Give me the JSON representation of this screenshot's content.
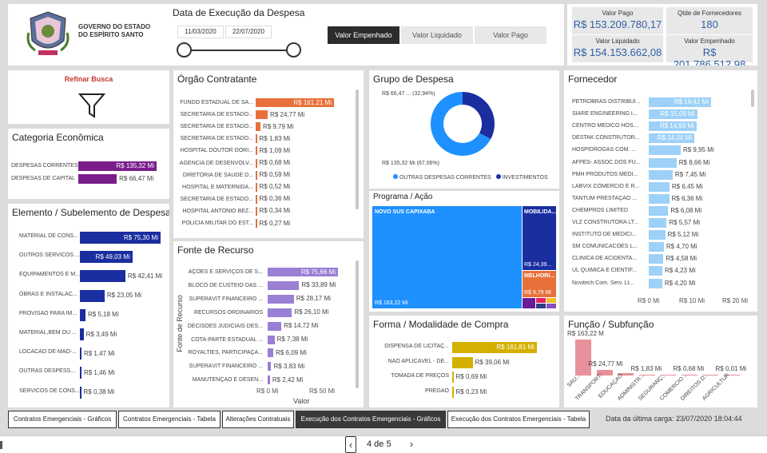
{
  "header": {
    "logo_text": "GOVERNO DO ESTADO\nDO ESPÍRITO SANTO",
    "date_title": "Data de Execução da Despesa",
    "date_start": "11/03/2020",
    "date_end": "22/07/2020",
    "toggles": [
      "Valor Empenhado",
      "Valor Liquidado",
      "Valor Pago"
    ],
    "active_toggle": "Valor Empenhado"
  },
  "kpis": {
    "valor_pago_label": "Valor Pago",
    "valor_pago": "R$ 153.209.780,17",
    "fornecedores_label": "Qtde de Fornecedores",
    "fornecedores": "180",
    "valor_liquidado_label": "Valor Liquidado",
    "valor_liquidado": "R$ 154.153.662,08",
    "valor_empenhado_label": "Valor Empenhado",
    "valor_empenhado": "R$ 201.786.512,98"
  },
  "refinar": {
    "title": "Refinar Busca"
  },
  "categoria": {
    "title": "Categoria Econômica",
    "rows": [
      {
        "label": "DESPESAS CORRENTES",
        "value": 135.32,
        "text": "R$ 135,32 Mi"
      },
      {
        "label": "DESPESAS DE CAPITAL",
        "value": 66.47,
        "text": "R$ 66,47 Mi"
      }
    ],
    "color": "#7a1e8c"
  },
  "elemento": {
    "title": "Elemento / Subelemento de Despesa",
    "rows": [
      {
        "label": "MATERIAL DE CONS...",
        "value": 75.3,
        "text": "R$ 75,30 Mi"
      },
      {
        "label": "OUTROS SERVICOS ...",
        "value": 49.03,
        "text": "R$ 49,03 Mi"
      },
      {
        "label": "EQUIPAMENTOS E M...",
        "value": 42.41,
        "text": "R$ 42,41 Mi"
      },
      {
        "label": "OBRAS E INSTALAC...",
        "value": 23.05,
        "text": "R$ 23,05 Mi"
      },
      {
        "label": "PROVISAO PARA IM...",
        "value": 5.18,
        "text": "R$ 5,18 Mi"
      },
      {
        "label": "MATERIAL,BEM OU ...",
        "value": 3.49,
        "text": "R$ 3,49 Mi"
      },
      {
        "label": "LOCACAO DE MAO-...",
        "value": 1.47,
        "text": "R$ 1,47 Mi"
      },
      {
        "label": "OUTRAS DESPESS...",
        "value": 1.46,
        "text": "R$ 1,46 Mi"
      },
      {
        "label": "SERVICOS DE CONS...",
        "value": 0.38,
        "text": "R$ 0,38 Mi"
      }
    ],
    "color": "#1a2ea0"
  },
  "orgao": {
    "title": "Órgão Contratante",
    "rows": [
      {
        "label": "FUNDO ESTADUAL DE SA...",
        "value": 161.21,
        "text": "R$ 161,21 Mi"
      },
      {
        "label": "SECRETARIA DE ESTADO...",
        "value": 24.77,
        "text": "R$ 24,77 Mi"
      },
      {
        "label": "SECRETARIA DE ESTADO...",
        "value": 9.79,
        "text": "R$ 9,79 Mi"
      },
      {
        "label": "SECRETARIA DE ESTADO...",
        "value": 1.83,
        "text": "R$ 1,83 Mi"
      },
      {
        "label": "HOSPITAL DOUTOR DORI...",
        "value": 1.09,
        "text": "R$ 1,09 Mi"
      },
      {
        "label": "AGÊNCIA DE DESENVOLV...",
        "value": 0.68,
        "text": "R$ 0,68 Mi"
      },
      {
        "label": "DIRETORIA DE SAÚDE D...",
        "value": 0.59,
        "text": "R$ 0,59 Mi"
      },
      {
        "label": "HOSPITAL E MATERNIDA...",
        "value": 0.52,
        "text": "R$ 0,52 Mi"
      },
      {
        "label": "SECRETARIA DE ESTADO...",
        "value": 0.36,
        "text": "R$ 0,36 Mi"
      },
      {
        "label": "HOSPITAL ANTONIO BEZ...",
        "value": 0.34,
        "text": "R$ 0,34 Mi"
      },
      {
        "label": "POLÍCIA MILITAR DO EST...",
        "value": 0.27,
        "text": "R$ 0,27 Mi"
      }
    ],
    "color": "#e8713b"
  },
  "fonte": {
    "title": "Fonte de Recurso",
    "yaxis": "Fonte de Recurso",
    "xaxis": "Valor",
    "ticks": [
      "R$ 0 Mi",
      "R$ 50 Mi"
    ],
    "rows": [
      {
        "label": "AÇÕES E SERVIÇOS DE S...",
        "value": 75.66,
        "text": "R$ 75,66 Mi"
      },
      {
        "label": "BLOCO DE CUSTEIO DAS ...",
        "value": 33.89,
        "text": "R$ 33,89 Mi"
      },
      {
        "label": "SUPERÁVIT FINANCEIRO ...",
        "value": 28.17,
        "text": "R$ 28,17 Mi"
      },
      {
        "label": "RECURSOS ORDINÁRIOS",
        "value": 26.1,
        "text": "R$ 26,10 Mi"
      },
      {
        "label": "DECISÕES JUDICIAIS DES...",
        "value": 14.72,
        "text": "R$ 14,72 Mi"
      },
      {
        "label": "COTA-PARTE ESTADUAL ...",
        "value": 7.38,
        "text": "R$ 7,38 Mi"
      },
      {
        "label": "ROYALTIES, PARTICIPAÇÃ...",
        "value": 6.09,
        "text": "R$ 6,09 Mi"
      },
      {
        "label": "SUPERÁVIT FINANCEIRO ...",
        "value": 3.83,
        "text": "R$ 3,83 Mi"
      },
      {
        "label": "MANUTENÇÃO E DESEN...",
        "value": 2.42,
        "text": "R$ 2,42 Mi"
      }
    ],
    "color": "#9a7fd4"
  },
  "grupo": {
    "title": "Grupo de Despesa",
    "slices": [
      {
        "name": "OUTRAS DESPESAS CORRENTES",
        "value": 135.32,
        "pct": 67.06,
        "text": "R$ 135,32 Mi (67,06%)",
        "color": "#1e90ff"
      },
      {
        "name": "INVESTIMENTOS",
        "value": 66.47,
        "pct": 32.94,
        "text": "R$ 66,47 ... (32,94%)",
        "color": "#1a2ea0"
      }
    ]
  },
  "programa": {
    "title": "Programa / Ação",
    "tiles": [
      {
        "label": "NOVO SUS CAPIXABA",
        "value": "R$ 163,22 Mi",
        "color": "#1e90ff"
      },
      {
        "label": "MOBILIDA...",
        "value": "R$ 24,39...",
        "color": "#1a2ea0"
      },
      {
        "label": "MELHORI...",
        "value": "R$ 9,79 Mi",
        "color": "#e8713b"
      }
    ]
  },
  "fornecedor": {
    "title": "Fornecedor",
    "ticks": [
      "R$ 0 Mi",
      "R$ 10 Mi",
      "R$ 20 Mi"
    ],
    "rows": [
      {
        "label": "PETROBRAS DISTRIBUI...",
        "value": 19.42,
        "text": "R$ 19,42 Mi"
      },
      {
        "label": "SIARE ENGINEERING I...",
        "value": 15.09,
        "text": "R$ 15,09 Mi"
      },
      {
        "label": "CENTRO MEDICO HOS...",
        "value": 14.93,
        "text": "R$ 14,93 Mi"
      },
      {
        "label": "DESTAK CONSTRUTOR...",
        "value": 14.2,
        "text": "R$ 14,20 Mi"
      },
      {
        "label": "HOSPIDROGAS COM. ...",
        "value": 9.95,
        "text": "R$ 9,95 Mi"
      },
      {
        "label": "AFPES- ASSOC.DOS FU...",
        "value": 8.66,
        "text": "R$ 8,66 Mi"
      },
      {
        "label": "PMH PRODUTOS MEDI...",
        "value": 7.45,
        "text": "R$ 7,45 Mi"
      },
      {
        "label": "LABVIX COMÉRCIO E R...",
        "value": 6.45,
        "text": "R$ 6,45 Mi"
      },
      {
        "label": "TANTUM PRESTAÇÃO ...",
        "value": 6.36,
        "text": "R$ 6,36 Mi"
      },
      {
        "label": "CHEMPROS LIMITED",
        "value": 6.08,
        "text": "R$ 6,08 Mi"
      },
      {
        "label": "VLZ CONSTRUTORA LT...",
        "value": 5.57,
        "text": "R$ 5,57 Mi"
      },
      {
        "label": "INSTITUTO DE MEDICI...",
        "value": 5.12,
        "text": "R$ 5,12 Mi"
      },
      {
        "label": "SM COMUNICACOES L...",
        "value": 4.7,
        "text": "R$ 4,70 Mi"
      },
      {
        "label": "CLINICA DE ACIDENTA...",
        "value": 4.58,
        "text": "R$ 4,58 Mi"
      },
      {
        "label": "UL QUIMICA E CIENTIF...",
        "value": 4.23,
        "text": "R$ 4,23 Mi"
      },
      {
        "label": "Novitech Com. Serv. Lt...",
        "value": 4.2,
        "text": "R$ 4,20 Mi"
      }
    ],
    "color": "#9dd1f7"
  },
  "forma": {
    "title": "Forma / Modalidade de Compra",
    "rows": [
      {
        "label": "DISPENSA DE LICITAÇ...",
        "value": 161.81,
        "text": "R$ 161,81 Mi"
      },
      {
        "label": "NÃO APLICÁVEL - DE...",
        "value": 39.06,
        "text": "R$ 39,06 Mi"
      },
      {
        "label": "TOMADA DE PREÇOS",
        "value": 0.69,
        "text": "R$ 0,69 Mi"
      },
      {
        "label": "PREGÃO",
        "value": 0.23,
        "text": "R$ 0,23 Mi"
      }
    ],
    "color": "#d4b000"
  },
  "funcao": {
    "title": "Função / Subfunção",
    "bars": [
      {
        "label": "SAÚ...",
        "value": 163.22,
        "text": "R$ 163,22 M"
      },
      {
        "label": "TRANSPORTE",
        "value": 24.77,
        "text": "R$ 24,77 Mi"
      },
      {
        "label": "EDUCAÇÃO",
        "value": 9.79,
        "text": ""
      },
      {
        "label": "ADMINISTR...",
        "value": 1.83,
        "text": "R$ 1,83 Mi"
      },
      {
        "label": "SEGURANÇ...",
        "value": 1.09,
        "text": ""
      },
      {
        "label": "COMÉRCIO ...",
        "value": 0.68,
        "text": "R$ 0,68 Mi"
      },
      {
        "label": "DIREITOS D...",
        "value": 0.36,
        "text": ""
      },
      {
        "label": "AGRICULTURA",
        "value": 0.01,
        "text": "R$ 0,01 Mi"
      }
    ],
    "color": "#e8919a"
  },
  "tabs": [
    "Contratos Emergenciais - Gráficos",
    "Contratos Emergenciais - Tabela",
    "Alterações Contratuais",
    "Execução dos Contratos Emergenciais - Gráficos",
    "Execução dos Contratos Emergenciais - Tabela"
  ],
  "active_tab": 3,
  "last_load": "Data da última carga: 23/07/2020 18:04:44",
  "pager": {
    "text": "4 de 5"
  }
}
